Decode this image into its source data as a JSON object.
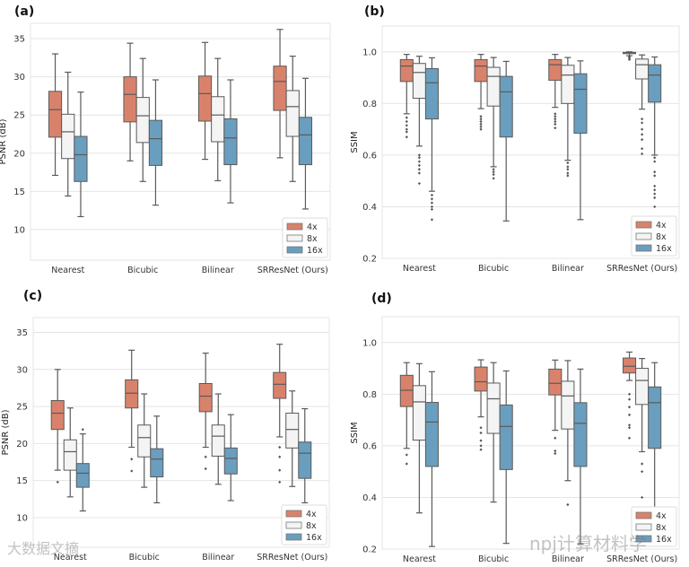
{
  "chart_data": [
    {
      "type": "box",
      "title": "(a)",
      "ylabel": "PSNR (dB)",
      "xlabel": "",
      "ylim": [
        6,
        37
      ],
      "yticks": [
        10,
        15,
        20,
        25,
        30,
        35
      ],
      "ytick_labels": [
        "10",
        "15",
        "20",
        "25",
        "30",
        "35"
      ],
      "grid": true,
      "legend_placement": "bottom-right",
      "categories": [
        "Nearest",
        "Bicubic",
        "Bilinear",
        "SRResNet (Ours)"
      ],
      "series": [
        {
          "name": "4x",
          "color": "#d9826b",
          "boxes": [
            {
              "whislo": 17.1,
              "q1": 22.1,
              "med": 25.7,
              "q3": 28.1,
              "whishi": 33.0,
              "fliers": []
            },
            {
              "whislo": 19.0,
              "q1": 24.1,
              "med": 27.7,
              "q3": 30.0,
              "whishi": 34.4,
              "fliers": []
            },
            {
              "whislo": 19.2,
              "q1": 24.2,
              "med": 27.8,
              "q3": 30.1,
              "whishi": 34.5,
              "fliers": []
            },
            {
              "whislo": 19.4,
              "q1": 25.6,
              "med": 29.4,
              "q3": 31.4,
              "whishi": 36.2,
              "fliers": []
            }
          ]
        },
        {
          "name": "8x",
          "color": "#f3f4f3",
          "boxes": [
            {
              "whislo": 14.4,
              "q1": 19.3,
              "med": 22.8,
              "q3": 25.1,
              "whishi": 30.6,
              "fliers": []
            },
            {
              "whislo": 16.3,
              "q1": 21.4,
              "med": 24.9,
              "q3": 27.3,
              "whishi": 32.4,
              "fliers": []
            },
            {
              "whislo": 16.4,
              "q1": 21.5,
              "med": 25.0,
              "q3": 27.4,
              "whishi": 32.4,
              "fliers": []
            },
            {
              "whislo": 16.3,
              "q1": 22.2,
              "med": 26.1,
              "q3": 28.2,
              "whishi": 32.7,
              "fliers": []
            }
          ]
        },
        {
          "name": "16x",
          "color": "#6a9ebe",
          "boxes": [
            {
              "whislo": 11.7,
              "q1": 16.3,
              "med": 19.8,
              "q3": 22.2,
              "whishi": 28.0,
              "fliers": []
            },
            {
              "whislo": 13.2,
              "q1": 18.4,
              "med": 21.9,
              "q3": 24.3,
              "whishi": 29.6,
              "fliers": []
            },
            {
              "whislo": 13.5,
              "q1": 18.5,
              "med": 22.0,
              "q3": 24.5,
              "whishi": 29.6,
              "fliers": []
            },
            {
              "whislo": 12.7,
              "q1": 18.5,
              "med": 22.4,
              "q3": 24.7,
              "whishi": 29.8,
              "fliers": []
            }
          ]
        }
      ]
    },
    {
      "type": "box",
      "title": "(b)",
      "ylabel": "SSIM",
      "xlabel": "",
      "ylim": [
        0.2,
        1.1
      ],
      "yticks": [
        0.2,
        0.4,
        0.6,
        0.8,
        1.0
      ],
      "ytick_labels": [
        "0.2",
        "0.4",
        "0.6",
        "0.8",
        "1.0"
      ],
      "grid": true,
      "legend_placement": "bottom-right",
      "categories": [
        "Nearest",
        "Bicubic",
        "Bilinear",
        "SRResNet (Ours)"
      ],
      "series": [
        {
          "name": "4x",
          "color": "#d9826b",
          "boxes": [
            {
              "whislo": 0.76,
              "q1": 0.885,
              "med": 0.945,
              "q3": 0.97,
              "whishi": 0.99,
              "fliers": [
                0.745,
                0.73,
                0.715,
                0.7,
                0.69,
                0.67
              ]
            },
            {
              "whislo": 0.78,
              "q1": 0.885,
              "med": 0.945,
              "q3": 0.97,
              "whishi": 0.99,
              "fliers": [
                0.75,
                0.74,
                0.73,
                0.72,
                0.71,
                0.7
              ]
            },
            {
              "whislo": 0.785,
              "q1": 0.89,
              "med": 0.95,
              "q3": 0.97,
              "whishi": 0.99,
              "fliers": [
                0.76,
                0.75,
                0.74,
                0.73,
                0.72,
                0.705
              ]
            },
            {
              "whislo": 0.985,
              "q1": 0.993,
              "med": 0.997,
              "q3": 0.998,
              "whishi": 1.0,
              "fliers": [
                0.98,
                0.975,
                0.97
              ]
            }
          ]
        },
        {
          "name": "8x",
          "color": "#f3f4f3",
          "boxes": [
            {
              "whislo": 0.635,
              "q1": 0.82,
              "med": 0.92,
              "q3": 0.955,
              "whishi": 0.983,
              "fliers": [
                0.6,
                0.59,
                0.575,
                0.56,
                0.545,
                0.53,
                0.49
              ]
            },
            {
              "whislo": 0.555,
              "q1": 0.79,
              "med": 0.905,
              "q3": 0.94,
              "whishi": 0.978,
              "fliers": [
                0.545,
                0.535,
                0.525,
                0.51
              ]
            },
            {
              "whislo": 0.58,
              "q1": 0.8,
              "med": 0.91,
              "q3": 0.948,
              "whishi": 0.978,
              "fliers": [
                0.57,
                0.555,
                0.545,
                0.53,
                0.52
              ]
            },
            {
              "whislo": 0.778,
              "q1": 0.895,
              "med": 0.95,
              "q3": 0.972,
              "whishi": 0.988,
              "fliers": [
                0.74,
                0.725,
                0.7,
                0.68,
                0.66,
                0.625,
                0.605
              ]
            }
          ]
        },
        {
          "name": "16x",
          "color": "#6a9ebe",
          "boxes": [
            {
              "whislo": 0.46,
              "q1": 0.74,
              "med": 0.88,
              "q3": 0.935,
              "whishi": 0.977,
              "fliers": [
                0.445,
                0.43,
                0.415,
                0.4,
                0.39,
                0.35
              ]
            },
            {
              "whislo": 0.345,
              "q1": 0.67,
              "med": 0.845,
              "q3": 0.905,
              "whishi": 0.963,
              "fliers": []
            },
            {
              "whislo": 0.35,
              "q1": 0.685,
              "med": 0.855,
              "q3": 0.915,
              "whishi": 0.965,
              "fliers": []
            },
            {
              "whislo": 0.6,
              "q1": 0.805,
              "med": 0.91,
              "q3": 0.95,
              "whishi": 0.98,
              "fliers": [
                0.59,
                0.575,
                0.535,
                0.52,
                0.48,
                0.465,
                0.45,
                0.435,
                0.4
              ]
            }
          ]
        }
      ]
    },
    {
      "type": "box",
      "title": "(c)",
      "ylabel": "PSNR (dB)",
      "xlabel": "",
      "ylim": [
        6,
        37
      ],
      "yticks": [
        10,
        15,
        20,
        25,
        30,
        35
      ],
      "ytick_labels": [
        "10",
        "15",
        "20",
        "25",
        "30",
        "35"
      ],
      "grid": true,
      "legend_placement": "bottom-right",
      "categories": [
        "Nearest",
        "Bicubic",
        "Bilinear",
        "SRResNet (Ours)"
      ],
      "series": [
        {
          "name": "4x",
          "color": "#d9826b",
          "boxes": [
            {
              "whislo": 16.4,
              "q1": 21.9,
              "med": 24.1,
              "q3": 25.8,
              "whishi": 30.0,
              "fliers": [
                14.8
              ]
            },
            {
              "whislo": 19.5,
              "q1": 24.8,
              "med": 26.8,
              "q3": 28.6,
              "whishi": 32.6,
              "fliers": [
                17.9,
                16.3
              ]
            },
            {
              "whislo": 19.5,
              "q1": 24.3,
              "med": 26.4,
              "q3": 28.1,
              "whishi": 32.2,
              "fliers": [
                18.2,
                16.6
              ]
            },
            {
              "whislo": 20.9,
              "q1": 26.1,
              "med": 28.0,
              "q3": 29.6,
              "whishi": 33.4,
              "fliers": [
                19.5,
                18.2,
                16.4,
                14.8
              ]
            }
          ]
        },
        {
          "name": "8x",
          "color": "#f3f4f3",
          "boxes": [
            {
              "whislo": 12.8,
              "q1": 16.4,
              "med": 18.9,
              "q3": 20.5,
              "whishi": 24.8,
              "fliers": []
            },
            {
              "whislo": 14.1,
              "q1": 18.2,
              "med": 20.8,
              "q3": 22.5,
              "whishi": 26.7,
              "fliers": []
            },
            {
              "whislo": 14.5,
              "q1": 18.3,
              "med": 21.0,
              "q3": 22.5,
              "whishi": 26.7,
              "fliers": []
            },
            {
              "whislo": 14.2,
              "q1": 19.4,
              "med": 21.9,
              "q3": 24.1,
              "whishi": 27.1,
              "fliers": []
            }
          ]
        },
        {
          "name": "16x",
          "color": "#6a9ebe",
          "boxes": [
            {
              "whislo": 10.9,
              "q1": 14.1,
              "med": 16.0,
              "q3": 17.3,
              "whishi": 21.3,
              "fliers": [
                21.9
              ]
            },
            {
              "whislo": 12.0,
              "q1": 15.5,
              "med": 17.9,
              "q3": 19.3,
              "whishi": 23.7,
              "fliers": []
            },
            {
              "whislo": 12.3,
              "q1": 15.9,
              "med": 18.0,
              "q3": 19.4,
              "whishi": 23.9,
              "fliers": []
            },
            {
              "whislo": 12.0,
              "q1": 15.3,
              "med": 18.7,
              "q3": 20.2,
              "whishi": 24.7,
              "fliers": []
            }
          ]
        }
      ]
    },
    {
      "type": "box",
      "title": "(d)",
      "ylabel": "SSIM",
      "xlabel": "",
      "ylim": [
        0.2,
        1.1
      ],
      "yticks": [
        0.2,
        0.4,
        0.6,
        0.8,
        1.0
      ],
      "ytick_labels": [
        "0.2",
        "0.4",
        "0.6",
        "0.8",
        "1.0"
      ],
      "grid": true,
      "legend_placement": "bottom-right",
      "categories": [
        "Nearest",
        "Bicubic",
        "Bilinear",
        "SRResNet (Ours)"
      ],
      "series": [
        {
          "name": "4x",
          "color": "#d9826b",
          "boxes": [
            {
              "whislo": 0.59,
              "q1": 0.752,
              "med": 0.815,
              "q3": 0.873,
              "whishi": 0.922,
              "fliers": [
                0.565,
                0.53
              ]
            },
            {
              "whislo": 0.712,
              "q1": 0.812,
              "med": 0.848,
              "q3": 0.905,
              "whishi": 0.933,
              "fliers": [
                0.67,
                0.65,
                0.62,
                0.6,
                0.585
              ]
            },
            {
              "whislo": 0.66,
              "q1": 0.797,
              "med": 0.842,
              "q3": 0.897,
              "whishi": 0.932,
              "fliers": [
                0.63,
                0.58,
                0.57
              ]
            },
            {
              "whislo": 0.853,
              "q1": 0.882,
              "med": 0.908,
              "q3": 0.94,
              "whishi": 0.963,
              "fliers": [
                0.8,
                0.78,
                0.75,
                0.72,
                0.68,
                0.67,
                0.63
              ]
            }
          ]
        },
        {
          "name": "8x",
          "color": "#f3f4f3",
          "boxes": [
            {
              "whislo": 0.34,
              "q1": 0.622,
              "med": 0.77,
              "q3": 0.833,
              "whishi": 0.918,
              "fliers": []
            },
            {
              "whislo": 0.382,
              "q1": 0.648,
              "med": 0.782,
              "q3": 0.843,
              "whishi": 0.922,
              "fliers": []
            },
            {
              "whislo": 0.465,
              "q1": 0.665,
              "med": 0.793,
              "q3": 0.85,
              "whishi": 0.93,
              "fliers": [
                0.372
              ]
            },
            {
              "whislo": 0.577,
              "q1": 0.76,
              "med": 0.853,
              "q3": 0.9,
              "whishi": 0.938,
              "fliers": [
                0.53,
                0.5,
                0.4
              ]
            }
          ]
        },
        {
          "name": "16x",
          "color": "#6a9ebe",
          "boxes": [
            {
              "whislo": 0.21,
              "q1": 0.52,
              "med": 0.692,
              "q3": 0.768,
              "whishi": 0.887,
              "fliers": []
            },
            {
              "whislo": 0.222,
              "q1": 0.508,
              "med": 0.675,
              "q3": 0.758,
              "whishi": 0.89,
              "fliers": []
            },
            {
              "whislo": 0.22,
              "q1": 0.52,
              "med": 0.687,
              "q3": 0.767,
              "whishi": 0.897,
              "fliers": []
            },
            {
              "whislo": 0.3,
              "q1": 0.59,
              "med": 0.767,
              "q3": 0.828,
              "whishi": 0.922,
              "fliers": []
            }
          ]
        }
      ]
    }
  ],
  "watermarks": [
    "大数据文摘",
    "npj计算材料学"
  ]
}
